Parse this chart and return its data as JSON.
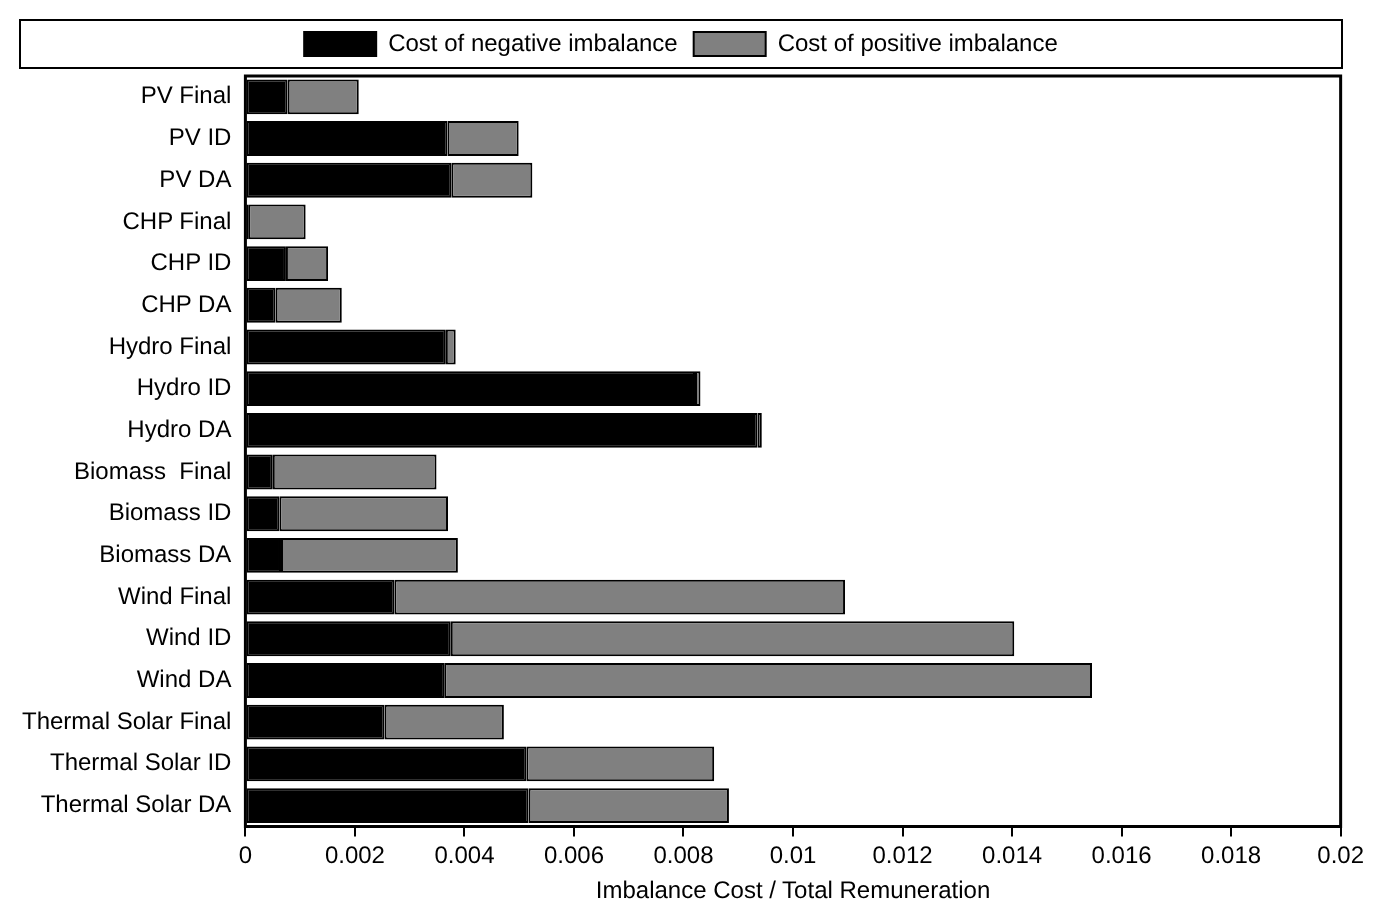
{
  "chart_data": {
    "type": "bar",
    "orientation": "horizontal",
    "stacked": true,
    "xlabel": "Imbalance Cost / Total Remuneration",
    "categories": [
      "PV Final",
      "PV ID",
      "PV DA",
      "CHP Final",
      "CHP ID",
      "CHP DA",
      "Hydro Final",
      "Hydro ID",
      "Hydro DA",
      "Biomass  Final",
      "Biomass ID",
      "Biomass DA",
      "Wind Final",
      "Wind ID",
      "Wind DA",
      "Thermal Solar Final",
      "Thermal Solar ID",
      "Thermal Solar DA"
    ],
    "series": [
      {
        "name": "Cost of negative imbalance",
        "color": "#000000",
        "values": [
          0.00077,
          0.00369,
          0.00376,
          5e-05,
          0.00074,
          0.00055,
          0.00366,
          0.00821,
          0.00935,
          0.0005,
          0.00062,
          0.00065,
          0.00272,
          0.00375,
          0.00363,
          0.00254,
          0.00513,
          0.00517
        ]
      },
      {
        "name": "Cost of positive imbalance",
        "color": "#808080",
        "values": [
          0.0013,
          0.0013,
          0.00148,
          0.00105,
          0.00077,
          0.00121,
          0.00018,
          0.0001,
          8e-05,
          0.00299,
          0.00308,
          0.00323,
          0.00823,
          0.01029,
          0.01183,
          0.00218,
          0.00343,
          0.00366
        ]
      }
    ],
    "xlim": [
      0,
      0.02
    ],
    "xticks": [
      0,
      0.002,
      0.004,
      0.006,
      0.008,
      0.01,
      0.012,
      0.014,
      0.016,
      0.018,
      0.02
    ],
    "grid": false,
    "legend": "top"
  }
}
